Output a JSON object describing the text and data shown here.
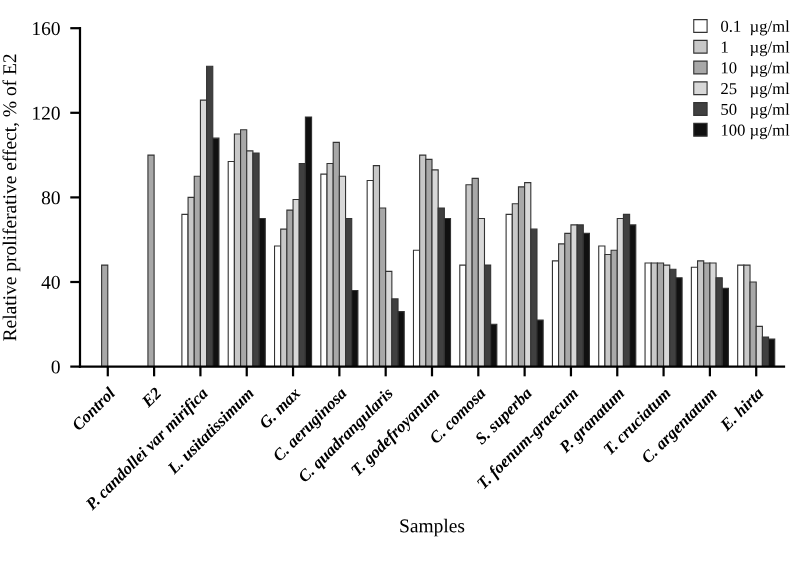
{
  "chart_data": {
    "type": "bar",
    "xlabel": "Samples",
    "ylabel": "Relative proliferative effect, % of E2",
    "categories": [
      "Control",
      "E2",
      "P. candollei var mirifica",
      "L. usitatissimum",
      "G. max",
      "C. aeruginosa",
      "C. quadrangularis",
      "T. godefroyanum",
      "C. comosa",
      "S. superba",
      "T. foenum-graecum",
      "P. granatum",
      "T. cruciatum",
      "C. argentatum",
      "E. hirta"
    ],
    "series": [
      {
        "name": "0.1  µg/ml",
        "color": "#ffffff",
        "values": [
          null,
          null,
          72,
          97,
          57,
          91,
          88,
          55,
          48,
          72,
          50,
          57,
          49,
          47,
          48
        ]
      },
      {
        "name": "1     µg/ml",
        "color": "#c8c8c8",
        "values": [
          null,
          null,
          80,
          110,
          65,
          96,
          95,
          100,
          86,
          77,
          58,
          53,
          49,
          50,
          48
        ]
      },
      {
        "name": "10   µg/ml",
        "color": "#a8a8a8",
        "values": [
          48,
          100,
          90,
          112,
          74,
          106,
          75,
          98,
          89,
          85,
          63,
          55,
          49,
          49,
          40
        ]
      },
      {
        "name": "25   µg/ml",
        "color": "#d8d8d8",
        "values": [
          null,
          null,
          126,
          102,
          79,
          90,
          45,
          93,
          70,
          87,
          67,
          70,
          48,
          49,
          19
        ]
      },
      {
        "name": "50   µg/ml",
        "color": "#404040",
        "values": [
          null,
          null,
          142,
          101,
          96,
          70,
          32,
          75,
          48,
          65,
          67,
          72,
          46,
          42,
          14
        ]
      },
      {
        "name": "100 µg/ml",
        "color": "#101010",
        "values": [
          null,
          null,
          108,
          70,
          118,
          36,
          26,
          70,
          20,
          22,
          63,
          67,
          42,
          37,
          13
        ]
      }
    ],
    "ylim": [
      0,
      160
    ],
    "yticks": [
      0,
      40,
      80,
      120,
      160
    ],
    "grid": false,
    "legend": "top right"
  }
}
